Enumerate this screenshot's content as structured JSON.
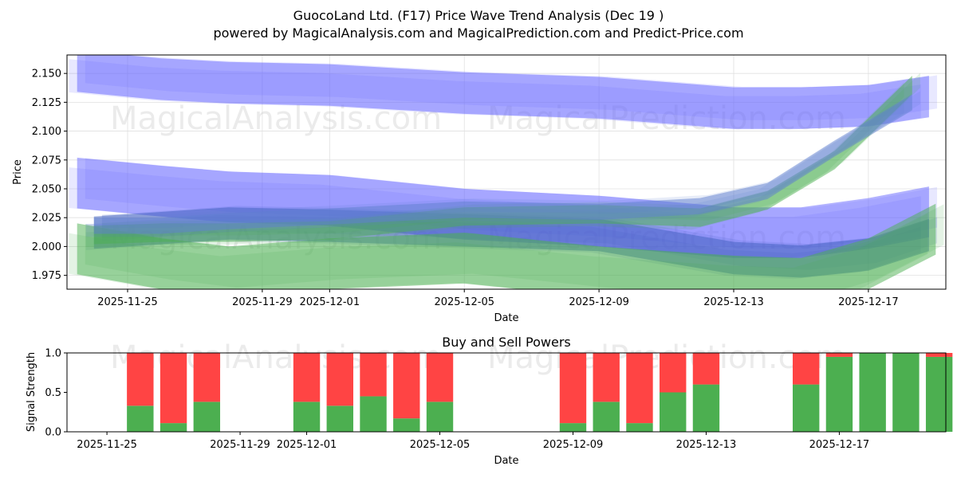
{
  "title_line1": "GuocoLand Ltd. (F17) Price Wave Trend Analysis (Dec 19 )",
  "title_line2": "powered by MagicalAnalysis.com and MagicalPrediction.com and Predict-Price.com",
  "watermarks": [
    "MagicalAnalysis.com",
    "MagicalPrediction.com"
  ],
  "colors": {
    "blue_band": "#6666ff",
    "green_band": "#4caf50",
    "buy": "#4caf50",
    "sell": "#ff4444",
    "grid": "#e0e0e0"
  },
  "chart_data": [
    {
      "type": "area",
      "title": "",
      "xlabel": "Date",
      "ylabel": "Price",
      "x_tick_labels": [
        "2025-11-25",
        "2025-11-29",
        "2025-12-01",
        "2025-12-05",
        "2025-12-09",
        "2025-12-13",
        "2025-12-17"
      ],
      "x_tick_days": [
        1,
        5,
        7,
        11,
        15,
        19,
        23
      ],
      "xlim_days": [
        -0.8,
        25.3
      ],
      "y_ticks": [
        1.975,
        2.0,
        2.025,
        2.05,
        2.075,
        2.1,
        2.125,
        2.15
      ],
      "y_tick_labels": [
        "1.975",
        "2.000",
        "2.025",
        "2.050",
        "2.075",
        "2.100",
        "2.125",
        "2.150"
      ],
      "ylim": [
        1.963,
        2.166
      ],
      "series": [
        {
          "name": "blue-upper-wave",
          "color": "#6666ff",
          "x": [
            -0.5,
            2,
            4,
            7,
            11,
            15,
            19,
            21,
            23,
            24.8
          ],
          "center": [
            2.152,
            2.145,
            2.142,
            2.14,
            2.133,
            2.129,
            2.12,
            2.12,
            2.122,
            2.13
          ],
          "half_width": 0.018
        },
        {
          "name": "blue-middle-wave",
          "color": "#6666ff",
          "x": [
            -0.5,
            2,
            4,
            7,
            11,
            15,
            19,
            21,
            23,
            24.8
          ],
          "center": [
            2.055,
            2.048,
            2.043,
            2.04,
            2.028,
            2.022,
            2.012,
            2.012,
            2.02,
            2.03
          ],
          "half_width": 0.022
        },
        {
          "name": "blue-lower-wave",
          "color": "#4060c0",
          "x": [
            0,
            2,
            4,
            7,
            11,
            15,
            19,
            21,
            23,
            24.8
          ],
          "center": [
            2.012,
            2.016,
            2.02,
            2.018,
            2.014,
            2.01,
            1.99,
            1.987,
            1.993,
            2.01
          ],
          "half_width": 0.014
        },
        {
          "name": "green-lower-wave",
          "color": "#4caf50",
          "x": [
            -0.5,
            2,
            4,
            7,
            11,
            15,
            19,
            21,
            23,
            25
          ],
          "center": [
            1.998,
            1.985,
            1.978,
            1.985,
            1.99,
            1.978,
            1.97,
            1.968,
            1.985,
            2.015
          ],
          "half_width": 0.022
        },
        {
          "name": "green-rising-wave",
          "color": "#4caf50",
          "x": [
            0,
            2,
            4,
            7,
            11,
            15,
            18,
            20,
            22,
            24.3
          ],
          "center": [
            2.01,
            2.012,
            2.012,
            2.014,
            2.026,
            2.028,
            2.025,
            2.04,
            2.075,
            2.14
          ],
          "half_width": 0.008
        },
        {
          "name": "blue-rising-wave",
          "color": "#6080d0",
          "x": [
            0,
            2,
            4,
            7,
            11,
            15,
            18,
            20,
            22,
            24.3
          ],
          "center": [
            2.018,
            2.018,
            2.022,
            2.026,
            2.032,
            2.03,
            2.035,
            2.048,
            2.085,
            2.125
          ],
          "half_width": 0.007
        }
      ]
    },
    {
      "type": "bar",
      "title": "Buy and Sell Powers",
      "xlabel": "Date",
      "ylabel": "Signal Strength",
      "x_tick_labels": [
        "2025-11-25",
        "2025-11-29",
        "2025-12-01",
        "2025-12-05",
        "2025-12-09",
        "2025-12-13",
        "2025-12-17"
      ],
      "x_tick_days": [
        1,
        5,
        7,
        11,
        15,
        19,
        23
      ],
      "xlim_days": [
        -0.2,
        26.2
      ],
      "y_ticks": [
        0.0,
        0.5,
        1.0
      ],
      "y_tick_labels": [
        "0.0",
        "0.5",
        "1.0"
      ],
      "ylim": [
        0,
        1
      ],
      "days": [
        2,
        3,
        4,
        7,
        8,
        9,
        10,
        11,
        15,
        16,
        17,
        18,
        19,
        22,
        23,
        24,
        25,
        26
      ],
      "series": [
        {
          "name": "Buy",
          "color": "#4caf50",
          "values": [
            0.33,
            0.11,
            0.38,
            0.38,
            0.33,
            0.45,
            0.17,
            0.38,
            0.11,
            0.38,
            0.11,
            0.5,
            0.6,
            0.6,
            0.95,
            1.0,
            1.0,
            0.95
          ]
        },
        {
          "name": "Sell",
          "color": "#ff4444",
          "values": [
            0.67,
            0.89,
            0.62,
            0.62,
            0.67,
            0.55,
            0.83,
            0.62,
            0.89,
            0.62,
            0.89,
            0.5,
            0.4,
            0.4,
            0.05,
            0.0,
            0.0,
            0.05
          ]
        }
      ]
    }
  ]
}
